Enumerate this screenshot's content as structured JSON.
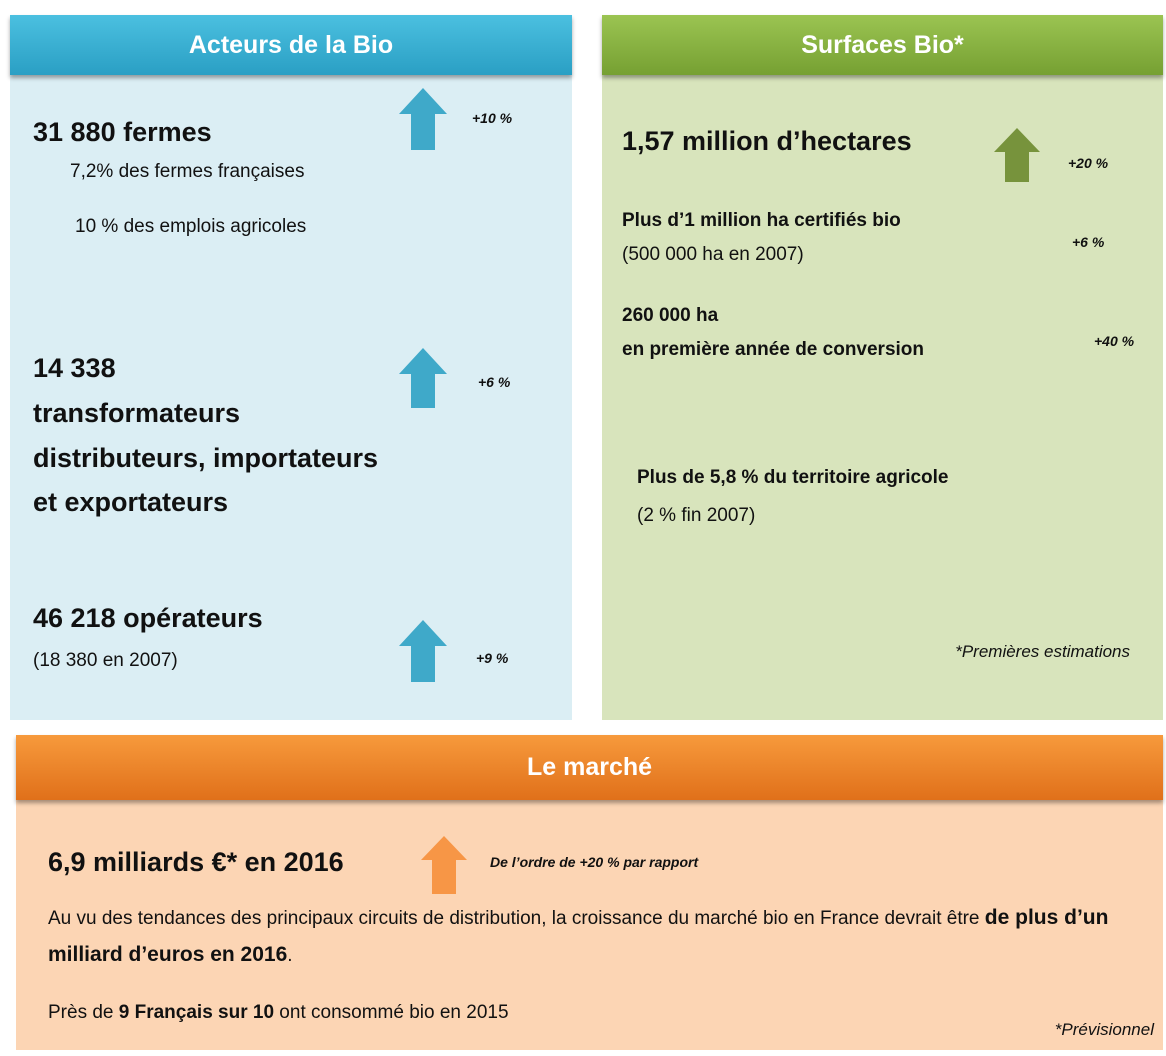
{
  "acteurs": {
    "title": "Acteurs de la Bio",
    "fermes": {
      "headline": "31 880 fermes",
      "lines": [
        "7,2% des fermes françaises",
        "10 % des emplois agricoles"
      ],
      "change": "+10 %"
    },
    "transformateurs": {
      "lines": [
        "14 338",
        "transformateurs",
        "distributeurs, importateurs",
        "et exportateurs"
      ],
      "change": "+6 %"
    },
    "operateurs": {
      "headline": "46 218 opérateurs",
      "note": "(18 380 en 2007)",
      "change": "+9 %"
    }
  },
  "surfaces": {
    "title": "Surfaces Bio*",
    "hectares": {
      "headline": "1,57 million d’hectares",
      "change": "+20 %"
    },
    "certifies": {
      "headline": "Plus d’1 million ha certifiés bio",
      "note": "(500 000 ha en 2007)",
      "change": "+6 %"
    },
    "conversion": {
      "lines": [
        "260 000 ha",
        "en première année de conversion"
      ],
      "change": "+40 %"
    },
    "territoire": {
      "headline": "Plus de 5,8 % du territoire agricole",
      "note": "(2 % fin 2007)"
    },
    "footnote": "*Premières estimations"
  },
  "marche": {
    "title": "Le marché",
    "headline": "6,9 milliards €* en 2016",
    "change": "De l’ordre de +20 % par rapport",
    "paragraph": [
      "Au vu des tendances des principaux circuits de distribution, la croissance du marché bio en France devrait être ",
      "de plus d’un milliard d’euros en 2016",
      "."
    ],
    "consumption": [
      "Près de ",
      "9 Français sur 10",
      " ont consommé bio en 2015"
    ],
    "footnote": "*Prévisionnel"
  }
}
